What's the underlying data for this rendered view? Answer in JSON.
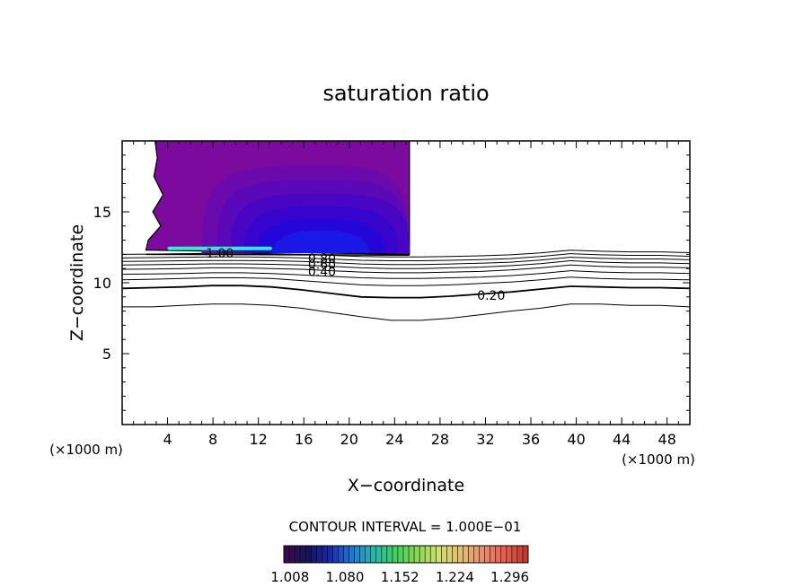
{
  "chart_data": {
    "type": "contour",
    "title": "saturation ratio",
    "xlabel": "X−coordinate",
    "ylabel": "Z−coordinate",
    "x_unit_left": "(×1000 m)",
    "x_unit_right": "(×1000 m)",
    "xlim": [
      0,
      50
    ],
    "ylim": [
      0,
      20
    ],
    "x_ticks": [
      "4",
      "8",
      "12",
      "16",
      "20",
      "24",
      "28",
      "32",
      "36",
      "40",
      "44",
      "48"
    ],
    "y_ticks": [
      "5",
      "10",
      "15"
    ],
    "contour_interval_text": "CONTOUR INTERVAL = 1.000E−01",
    "contour_labels": [
      {
        "text": "1.00",
        "x": 8.6,
        "y": 12.1
      },
      {
        "text": "0.80",
        "x": 17.6,
        "y": 11.7
      },
      {
        "text": "0.60",
        "x": 17.6,
        "y": 11.3
      },
      {
        "text": "0.40",
        "x": 17.6,
        "y": 10.8
      },
      {
        "text": "0.20",
        "x": 32.5,
        "y": 9.1
      }
    ],
    "colorbar": {
      "tick_labels": [
        "1.008",
        "1.080",
        "1.152",
        "1.224",
        "1.296"
      ],
      "min": 1.0,
      "max": 1.32,
      "colors": [
        "#3a0a4a",
        "#15155e",
        "#1a2aa8",
        "#1b78d8",
        "#22b8b0",
        "#3fd060",
        "#88d850",
        "#cfe070",
        "#e0c070",
        "#e89070",
        "#e86050",
        "#c03a30"
      ]
    },
    "supersaturated_region": {
      "x_range": [
        2.1,
        25.3
      ],
      "z_top": 20,
      "z_base": 12.0,
      "fill_colors": [
        "#7d0a9e",
        "#6a0aac",
        "#5a08b8",
        "#4806c4",
        "#3604cc",
        "#2406d8",
        "#1a18e6"
      ],
      "max_value_band_color": "#2af0d0"
    },
    "contour_lines": [
      {
        "level": "0.1",
        "thick": false,
        "z": [
          8.3,
          8.3,
          8.4,
          8.5,
          8.5,
          8.4,
          8.2,
          7.9,
          7.6,
          7.35,
          7.35,
          7.5,
          7.75,
          8.0,
          8.2,
          8.5,
          8.5,
          8.4,
          8.4,
          8.3
        ]
      },
      {
        "level": "0.2",
        "thick": true,
        "z": [
          9.6,
          9.65,
          9.7,
          9.8,
          9.8,
          9.7,
          9.5,
          9.25,
          9.0,
          8.95,
          8.95,
          9.05,
          9.2,
          9.35,
          9.55,
          9.75,
          9.7,
          9.65,
          9.65,
          9.6
        ]
      },
      {
        "level": "0.3",
        "thick": false,
        "z": [
          10.2,
          10.25,
          10.3,
          10.35,
          10.35,
          10.3,
          10.15,
          10.0,
          9.85,
          9.8,
          9.8,
          9.85,
          9.95,
          10.05,
          10.2,
          10.4,
          10.3,
          10.25,
          10.25,
          10.2
        ]
      },
      {
        "level": "0.4",
        "thick": false,
        "z": [
          10.6,
          10.62,
          10.65,
          10.7,
          10.7,
          10.65,
          10.55,
          10.45,
          10.35,
          10.3,
          10.3,
          10.35,
          10.4,
          10.5,
          10.65,
          10.85,
          10.75,
          10.7,
          10.7,
          10.65
        ]
      },
      {
        "level": "0.5",
        "thick": false,
        "z": [
          10.95,
          10.97,
          11.0,
          11.05,
          11.05,
          11.0,
          10.95,
          10.85,
          10.75,
          10.7,
          10.7,
          10.75,
          10.8,
          10.9,
          11.05,
          11.25,
          11.15,
          11.1,
          11.1,
          11.05
        ]
      },
      {
        "level": "0.6",
        "thick": false,
        "z": [
          11.25,
          11.27,
          11.3,
          11.33,
          11.33,
          11.3,
          11.25,
          11.15,
          11.05,
          11.0,
          11.0,
          11.05,
          11.1,
          11.2,
          11.35,
          11.55,
          11.45,
          11.4,
          11.4,
          11.35
        ]
      },
      {
        "level": "0.7",
        "thick": false,
        "z": [
          11.5,
          11.52,
          11.55,
          11.57,
          11.57,
          11.55,
          11.5,
          11.42,
          11.32,
          11.28,
          11.28,
          11.32,
          11.38,
          11.45,
          11.6,
          11.8,
          11.72,
          11.68,
          11.68,
          11.62
        ]
      },
      {
        "level": "0.8",
        "thick": false,
        "z": [
          11.75,
          11.77,
          11.8,
          11.82,
          11.82,
          11.8,
          11.75,
          11.67,
          11.58,
          11.55,
          11.55,
          11.58,
          11.63,
          11.7,
          11.85,
          12.05,
          11.97,
          11.93,
          11.93,
          11.87
        ]
      },
      {
        "level": "0.9",
        "thick": false,
        "z": [
          12.0,
          12.02,
          12.05,
          12.07,
          12.07,
          12.05,
          12.0,
          11.93,
          11.85,
          11.82,
          11.82,
          11.85,
          11.9,
          11.97,
          12.1,
          12.3,
          12.22,
          12.18,
          12.18,
          12.12
        ]
      }
    ]
  }
}
